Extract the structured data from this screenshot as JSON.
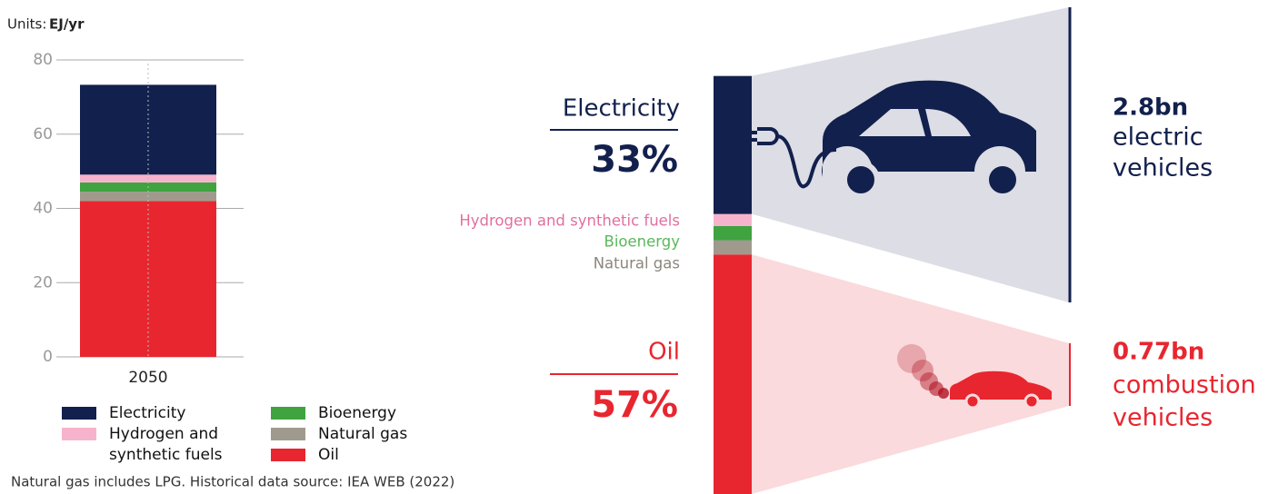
{
  "chart_data": {
    "type": "bar",
    "stacked": true,
    "units_label": "Units:",
    "units": "EJ/yr",
    "categories": [
      "2050"
    ],
    "series": [
      {
        "name": "Electricity",
        "color": "#12204d",
        "values": [
          24.2
        ]
      },
      {
        "name": "Hydrogen and synthetic fuels",
        "color": "#f7b3cc",
        "values": [
          2.1
        ]
      },
      {
        "name": "Bioenergy",
        "color": "#3fa33f",
        "values": [
          2.5
        ]
      },
      {
        "name": "Natural gas",
        "color": "#a09a8e",
        "values": [
          2.5
        ]
      },
      {
        "name": "Oil",
        "color": "#e8262f",
        "values": [
          42
        ]
      }
    ],
    "ylim": [
      0,
      80
    ],
    "yticks": [
      0,
      20,
      40,
      60,
      80
    ],
    "grid": true,
    "footnote": "Natural gas includes LPG. Historical data source: IEA WEB (2022)",
    "annotations": {
      "electricity_share": "33%",
      "oil_share": "57%",
      "electric_count": "2.8bn",
      "electric_text": [
        "electric",
        "vehicles"
      ],
      "combustion_count": "0.77bn",
      "combustion_text": [
        "combustion",
        "vehicles"
      ]
    }
  }
}
